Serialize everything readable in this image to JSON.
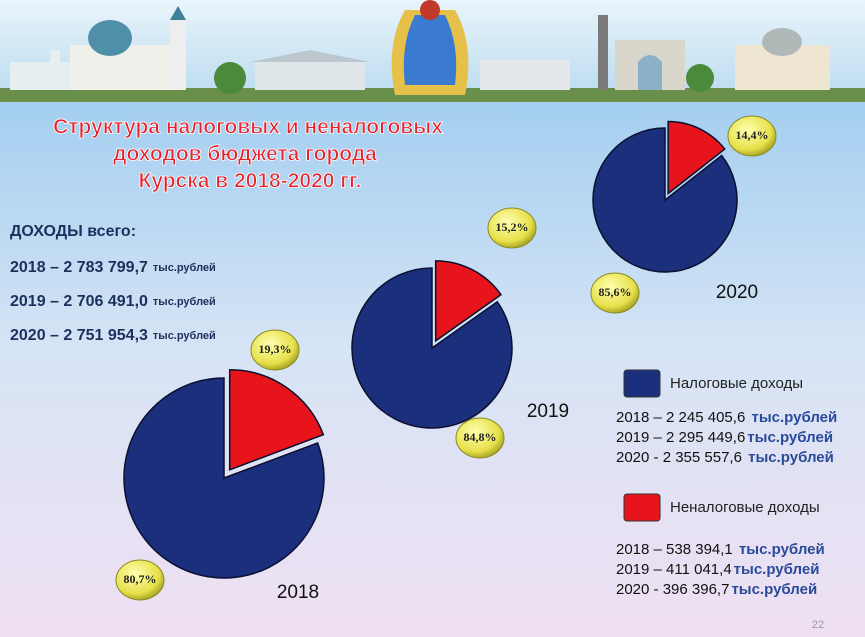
{
  "slide": {
    "title": [
      "Структура налоговых и неналоговых",
      "доходов бюджета города",
      "Курска в 2018-2020 гг."
    ],
    "totals_heading": "ДОХОДЫ всего:",
    "totals": [
      {
        "text": "2018 – 2 783 799,7",
        "unit": "тыс.рублей"
      },
      {
        "text": "2019 – 2 706 491,0",
        "unit": "тыс.рублей"
      },
      {
        "text": "2020 – 2 751 954,3",
        "unit": "тыс.рублей"
      }
    ],
    "tax_amounts": [
      {
        "text": "2018 – 2 245 405,6 ",
        "unit": "тыс.рублей"
      },
      {
        "text": "2019 – 2 295 449,6",
        "unit": "тыс.рублей"
      },
      {
        "text": "2020 -  2 355 557,6 ",
        "unit": "тыс.рублей"
      }
    ],
    "nontax_amounts": [
      {
        "text": "2018 – 538 394,1 ",
        "unit": "тыс.рублей"
      },
      {
        "text": "2019 – 411 041,4",
        "unit": "тыс.рублей"
      },
      {
        "text": "2020  - 396 396,7",
        "unit": "тыс.рублей"
      }
    ],
    "page_number": "22"
  },
  "chart_data": [
    {
      "type": "pie",
      "label": "2018",
      "categories": [
        "Налоговые доходы",
        "Неналоговые доходы"
      ],
      "values": [
        80.7,
        19.3
      ],
      "value_labels": [
        "80,7%",
        "19,3%"
      ],
      "colors": [
        "#1c2f7d",
        "#e8141b"
      ]
    },
    {
      "type": "pie",
      "label": "2019",
      "categories": [
        "Налоговые доходы",
        "Неналоговые доходы"
      ],
      "values": [
        84.8,
        15.2
      ],
      "value_labels": [
        "84,8%",
        "15,2%"
      ],
      "colors": [
        "#1c2f7d",
        "#e8141b"
      ]
    },
    {
      "type": "pie",
      "label": "2020",
      "categories": [
        "Налоговые доходы",
        "Неналоговые доходы"
      ],
      "values": [
        85.6,
        14.4
      ],
      "value_labels": [
        "85,6%",
        "14,4%"
      ],
      "colors": [
        "#1c2f7d",
        "#e8141b"
      ]
    }
  ]
}
